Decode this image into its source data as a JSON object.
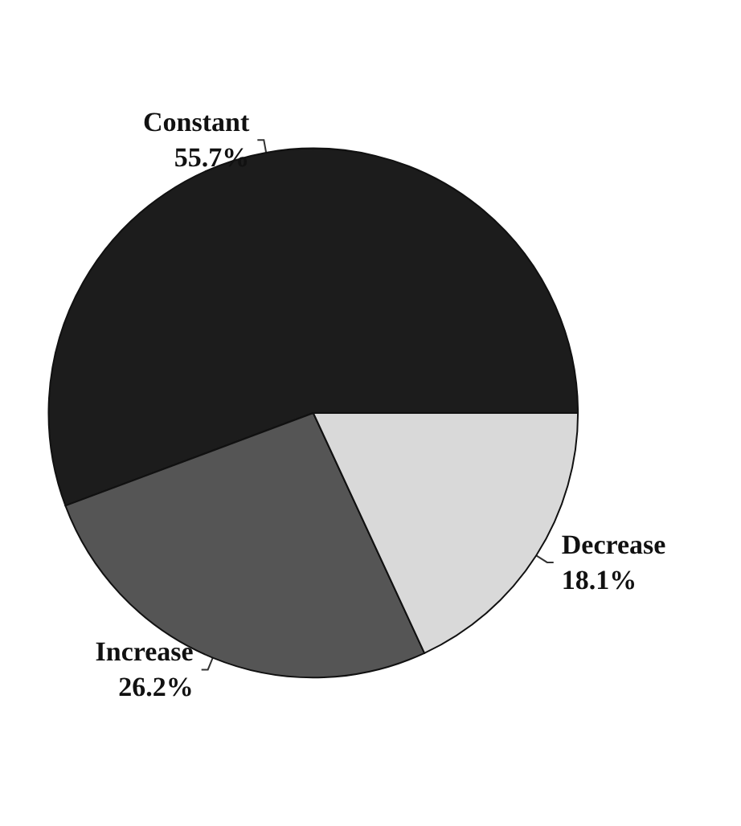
{
  "chart_data": {
    "type": "pie",
    "categories": [
      "Constant",
      "Increase",
      "Decrease"
    ],
    "values": [
      55.7,
      26.2,
      18.1
    ],
    "colors": [
      "#1c1c1c",
      "#555555",
      "#d9d9d9"
    ],
    "value_labels": [
      "55.7%",
      "26.2%",
      "18.1%"
    ],
    "legend": false
  }
}
